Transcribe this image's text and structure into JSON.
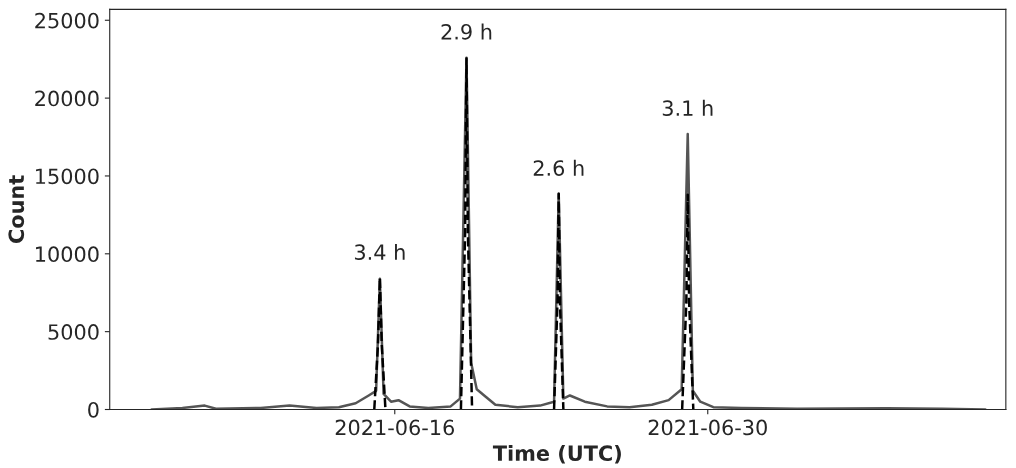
{
  "chart_data": {
    "type": "line",
    "xlabel": "Time (UTC)",
    "ylabel": "Count",
    "xlim": [
      "2021-06-03T06:00",
      "2021-07-13T08:00"
    ],
    "xticks": [
      "2021-06-16",
      "2021-06-30"
    ],
    "ylim": [
      0,
      25700
    ],
    "yticks": [
      0,
      5000,
      10000,
      15000,
      20000,
      25000
    ],
    "grid": false,
    "series": [
      {
        "color": "#555555",
        "line_style": "solid",
        "x": [
          "2021-06-05T03:00",
          "2021-06-06T12:00",
          "2021-06-07T12:00",
          "2021-06-08T00:00",
          "2021-06-10T00:00",
          "2021-06-11T07:00",
          "2021-06-12T12:00",
          "2021-06-13T12:00",
          "2021-06-14T06:00",
          "2021-06-14T20:00",
          "2021-06-15T04:00",
          "2021-06-15T08:00",
          "2021-06-15T12:00",
          "2021-06-15T20:00",
          "2021-06-16T04:00",
          "2021-06-16T16:00",
          "2021-06-17T12:00",
          "2021-06-18T12:00",
          "2021-06-18T22:00",
          "2021-06-19T05:00",
          "2021-06-19T10:00",
          "2021-06-19T16:00",
          "2021-06-20T00:00",
          "2021-06-20T12:00",
          "2021-06-21T12:00",
          "2021-06-22T12:00",
          "2021-06-23T03:00",
          "2021-06-23T08:00",
          "2021-06-23T13:00",
          "2021-06-23T20:00",
          "2021-06-24T12:00",
          "2021-06-25T12:00",
          "2021-06-26T12:00",
          "2021-06-27T12:00",
          "2021-06-28T06:00",
          "2021-06-28T20:00",
          "2021-06-29T02:30",
          "2021-06-29T08:00",
          "2021-06-29T16:00",
          "2021-06-30T06:00",
          "2021-07-01T12:00",
          "2021-07-04T00:00",
          "2021-07-08T00:00",
          "2021-07-10T12:00",
          "2021-07-12T10:00"
        ],
        "values": [
          0,
          100,
          250,
          50,
          100,
          250,
          100,
          150,
          400,
          900,
          1200,
          8400,
          1000,
          500,
          600,
          200,
          100,
          200,
          700,
          22600,
          3000,
          1300,
          900,
          300,
          150,
          250,
          500,
          13850,
          700,
          900,
          500,
          200,
          150,
          300,
          600,
          1300,
          17700,
          1200,
          500,
          150,
          100,
          50,
          80,
          50,
          0
        ]
      },
      {
        "color": "#000000",
        "line_style": "dashed",
        "x": [
          "2021-06-15T02:00",
          "2021-06-15T06:00",
          "2021-06-15T08:00",
          "2021-06-15T10:00",
          "2021-06-15T14:00"
        ],
        "values": [
          0,
          4200,
          8450,
          4200,
          0
        ]
      },
      {
        "color": "#000000",
        "line_style": "dashed",
        "x": [
          "2021-06-18T23:00",
          "2021-06-19T03:30",
          "2021-06-19T05:00",
          "2021-06-19T06:30",
          "2021-06-19T11:00"
        ],
        "values": [
          0,
          11300,
          22550,
          11300,
          0
        ]
      },
      {
        "color": "#000000",
        "line_style": "dashed",
        "x": [
          "2021-06-23T03:00",
          "2021-06-23T06:40",
          "2021-06-23T08:00",
          "2021-06-23T09:20",
          "2021-06-23T13:00"
        ],
        "values": [
          0,
          6900,
          13850,
          6900,
          0
        ]
      },
      {
        "color": "#000000",
        "line_style": "dashed",
        "x": [
          "2021-06-28T20:30",
          "2021-06-29T01:00",
          "2021-06-29T02:30",
          "2021-06-29T04:00",
          "2021-06-29T08:30"
        ],
        "values": [
          0,
          6900,
          13800,
          6900,
          0
        ]
      }
    ],
    "annotations": [
      {
        "text": "3.4 h",
        "x": "2021-06-15T08:00",
        "y": 8450
      },
      {
        "text": "2.9 h",
        "x": "2021-06-19T05:00",
        "y": 22600
      },
      {
        "text": "2.6 h",
        "x": "2021-06-23T08:00",
        "y": 13850
      },
      {
        "text": "3.1 h",
        "x": "2021-06-29T02:30",
        "y": 17700
      }
    ]
  }
}
